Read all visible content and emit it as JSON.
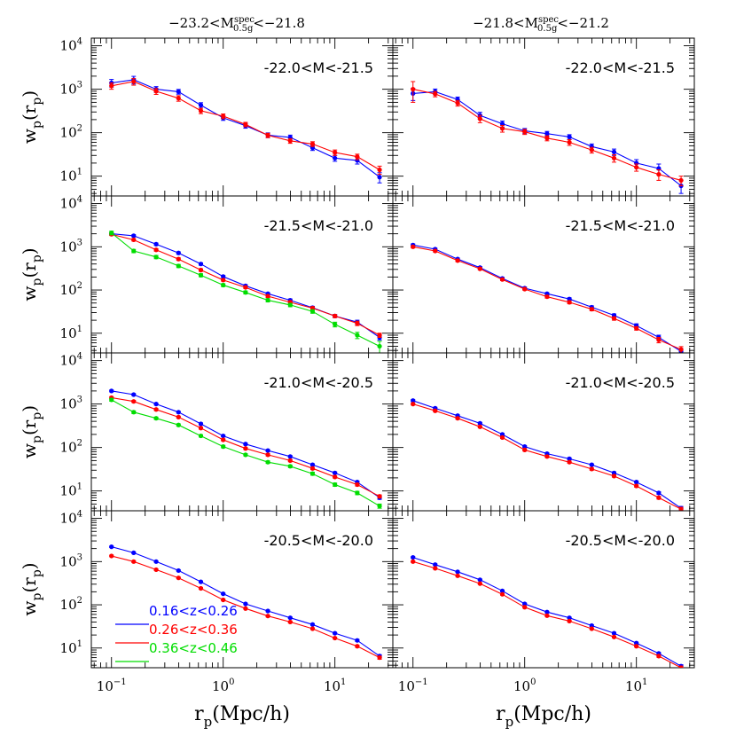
{
  "chart_data": {
    "type": "line",
    "x_scale": "log",
    "y_scale": "log",
    "xlim": [
      0.066,
      33
    ],
    "ylim": [
      3.5,
      15000
    ],
    "x_ticks": [
      {
        "base": "10",
        "exp": "−1",
        "value": 0.1
      },
      {
        "base": "10",
        "exp": "0",
        "value": 1
      },
      {
        "base": "10",
        "exp": "1",
        "value": 10
      }
    ],
    "y_ticks": [
      {
        "base": "10",
        "exp": "4",
        "value": 10000
      },
      {
        "base": "10",
        "exp": "3",
        "value": 1000
      },
      {
        "base": "10",
        "exp": "2",
        "value": 100
      },
      {
        "base": "10",
        "exp": "1",
        "value": 10
      }
    ],
    "column_titles": [
      {
        "pre": "−23.2<M",
        "sup": "spec",
        "sub": "0.5g",
        "post": "<−21.8"
      },
      {
        "pre": "−21.8<M",
        "sup": "spec",
        "sub": "0.5g",
        "post": "<−21.2"
      }
    ],
    "ylabel": {
      "w": "w",
      "p": "p",
      "r": "(r",
      "p2": "p",
      "close": ")"
    },
    "xlabel": {
      "r": "r",
      "p": "p",
      "rest": "(Mpc/h)"
    },
    "x": [
      0.1,
      0.158,
      0.251,
      0.398,
      0.631,
      1.0,
      1.585,
      2.512,
      3.981,
      6.31,
      10.0,
      15.85,
      25.12
    ],
    "legend": {
      "placement": "lower-left of bottom-left panel",
      "entries": [
        {
          "name": "0.16<z<0.26",
          "color": "#0000ff"
        },
        {
          "name": "0.26<z<0.36",
          "color": "#ff0000"
        },
        {
          "name": "0.36<z<0.46",
          "color": "#00dd00"
        }
      ]
    },
    "panels": [
      {
        "row": 0,
        "col": 0,
        "label": "-22.0<M<-21.5",
        "series": [
          {
            "color": "#0000ff",
            "values": [
              1400,
              1650,
              1000,
              880,
              430,
              220,
              145,
              88,
              78,
              45,
              26,
              23,
              9.5
            ],
            "errors": [
              280,
              330,
              150,
              110,
              60,
              28,
              18,
              11,
              10,
              6,
              4,
              4,
              2.5
            ]
          },
          {
            "color": "#ff0000",
            "values": [
              1200,
              1500,
              900,
              620,
              320,
              240,
              155,
              87,
              65,
              55,
              35,
              28,
              14
            ],
            "errors": [
              200,
              260,
              140,
              90,
              45,
              30,
              18,
              10,
              8,
              7,
              5,
              4,
              3
            ]
          }
        ]
      },
      {
        "row": 0,
        "col": 1,
        "label": "-22.0<M<-21.5",
        "series": [
          {
            "color": "#0000ff",
            "values": [
              800,
              880,
              580,
              250,
              160,
              110,
              95,
              80,
              48,
              36,
              20,
              15,
              6
            ],
            "errors": [
              250,
              130,
              80,
              45,
              25,
              15,
              12,
              10,
              7,
              6,
              4,
              4,
              2
            ]
          },
          {
            "color": "#ff0000",
            "values": [
              1000,
              780,
              480,
              210,
              125,
              105,
              75,
              60,
              40,
              26,
              16,
              11,
              8
            ],
            "errors": [
              500,
              110,
              70,
              40,
              22,
              14,
              10,
              9,
              6,
              5,
              3,
              3,
              2
            ]
          }
        ]
      },
      {
        "row": 1,
        "col": 0,
        "label": "-21.5<M<-21.0",
        "series": [
          {
            "color": "#0000ff",
            "values": [
              2000,
              1800,
              1150,
              720,
              400,
              205,
              125,
              82,
              58,
              39,
              25,
              18,
              8
            ],
            "errors": [
              130,
              100,
              70,
              45,
              25,
              12,
              8,
              5,
              4,
              3,
              2,
              2,
              1
            ]
          },
          {
            "color": "#ff0000",
            "values": [
              1950,
              1450,
              850,
              520,
              290,
              170,
              115,
              72,
              52,
              38,
              25,
              17,
              9
            ],
            "errors": [
              130,
              90,
              55,
              35,
              20,
              10,
              7,
              5,
              4,
              3,
              2,
              2,
              1
            ]
          },
          {
            "color": "#00dd00",
            "values": [
              2100,
              800,
              580,
              360,
              220,
              130,
              88,
              58,
              45,
              32,
              16,
              9,
              5
            ],
            "errors": [
              200,
              70,
              50,
              30,
              18,
              10,
              7,
              5,
              4,
              3,
              2,
              1.5,
              1.5
            ]
          }
        ]
      },
      {
        "row": 1,
        "col": 1,
        "label": "-21.5<M<-21.0",
        "series": [
          {
            "color": "#0000ff",
            "values": [
              1100,
              880,
              520,
              330,
              185,
              110,
              82,
              62,
              40,
              26,
              15,
              8,
              3.8
            ],
            "errors": [
              70,
              50,
              30,
              20,
              11,
              7,
              5,
              4,
              3,
              2,
              1.5,
              1,
              0.6
            ]
          },
          {
            "color": "#ff0000",
            "values": [
              1000,
              800,
              480,
              310,
              175,
              105,
              70,
              52,
              36,
              22,
              13,
              7,
              4.2
            ],
            "errors": [
              60,
              45,
              28,
              18,
              10,
              6,
              5,
              4,
              3,
              2,
              1.2,
              1,
              0.7
            ]
          }
        ]
      },
      {
        "row": 2,
        "col": 0,
        "label": "-21.0<M<-20.5",
        "series": [
          {
            "color": "#0000ff",
            "values": [
              2000,
              1650,
              1000,
              650,
              350,
              185,
              120,
              85,
              62,
              40,
              26,
              16,
              7
            ],
            "errors": [
              100,
              80,
              50,
              30,
              18,
              9,
              6,
              4,
              3,
              2,
              1.5,
              1,
              0.6
            ]
          },
          {
            "color": "#ff0000",
            "values": [
              1400,
              1150,
              750,
              500,
              280,
              150,
              95,
              68,
              50,
              33,
              21,
              14,
              7.5
            ],
            "errors": [
              80,
              60,
              40,
              25,
              14,
              8,
              5,
              4,
              3,
              2,
              1.2,
              1,
              0.6
            ]
          },
          {
            "color": "#00dd00",
            "values": [
              1250,
              650,
              470,
              330,
              185,
              105,
              68,
              46,
              37,
              25,
              14,
              9,
              4.5
            ],
            "errors": [
              90,
              45,
              30,
              20,
              11,
              7,
              4,
              3,
              2.5,
              2,
              1.2,
              0.8,
              0.5
            ]
          }
        ]
      },
      {
        "row": 2,
        "col": 1,
        "label": "-21.0<M<-20.5",
        "series": [
          {
            "color": "#0000ff",
            "values": [
              1200,
              800,
              540,
              360,
              200,
              105,
              72,
              55,
              40,
              26,
              16,
              9,
              4
            ],
            "errors": [
              60,
              40,
              25,
              18,
              10,
              5,
              4,
              3,
              2,
              1.5,
              1,
              0.6,
              0.4
            ]
          },
          {
            "color": "#ff0000",
            "values": [
              1000,
              700,
              470,
              300,
              170,
              88,
              62,
              46,
              32,
              22,
              13,
              7,
              3.8
            ],
            "errors": [
              50,
              35,
              22,
              15,
              9,
              5,
              3,
              2.5,
              2,
              1.2,
              0.8,
              0.5,
              0.4
            ]
          }
        ]
      },
      {
        "row": 3,
        "col": 0,
        "label": "-20.5<M<-20.0",
        "series": [
          {
            "color": "#0000ff",
            "values": [
              2200,
              1600,
              1000,
              620,
              340,
              180,
              105,
              72,
              50,
              35,
              22,
              15,
              6.5
            ],
            "errors": [
              80,
              60,
              35,
              22,
              12,
              6,
              4,
              3,
              2,
              1.5,
              1,
              0.8,
              0.5
            ]
          },
          {
            "color": "#ff0000",
            "values": [
              1350,
              1000,
              650,
              420,
              240,
              130,
              82,
              55,
              40,
              28,
              17,
              11,
              6
            ],
            "errors": [
              60,
              45,
              28,
              18,
              10,
              5,
              3,
              2.5,
              2,
              1.2,
              0.8,
              0.6,
              0.5
            ]
          }
        ]
      },
      {
        "row": 3,
        "col": 1,
        "label": "-20.5<M<-20.0",
        "series": [
          {
            "color": "#0000ff",
            "values": [
              1250,
              850,
              580,
              380,
              210,
              105,
              68,
              50,
              33,
              22,
              13,
              7.5,
              3.8
            ],
            "errors": [
              50,
              35,
              22,
              15,
              9,
              4,
              3,
              2,
              1.5,
              1,
              0.6,
              0.4,
              0.3
            ]
          },
          {
            "color": "#ff0000",
            "values": [
              1000,
              700,
              470,
              310,
              175,
              88,
              56,
              42,
              28,
              18,
              11,
              6.5,
              3.5
            ],
            "errors": [
              40,
              30,
              20,
              12,
              8,
              4,
              2.5,
              2,
              1.2,
              0.8,
              0.5,
              0.4,
              0.3
            ]
          }
        ]
      }
    ]
  }
}
